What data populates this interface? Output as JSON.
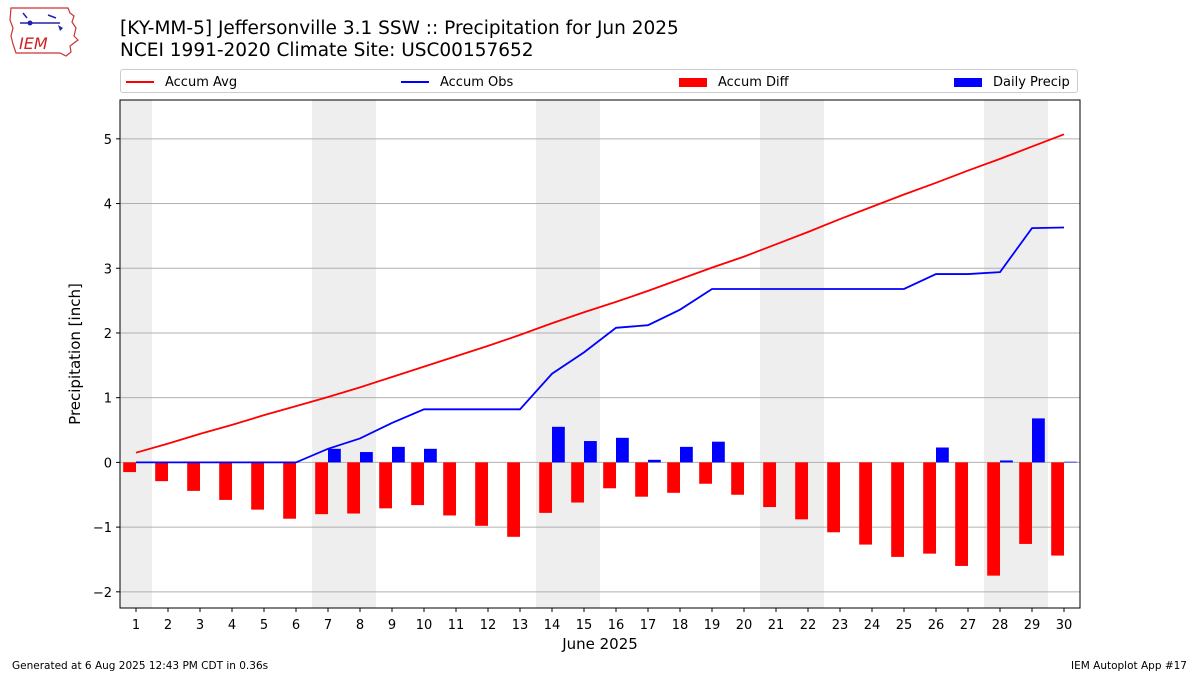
{
  "header": {
    "logo_text": "IEM",
    "title_line1": "[KY-MM-5] Jeffersonville 3.1 SSW :: Precipitation for Jun 2025",
    "title_line2": "NCEI 1991-2020 Climate Site: USC00157652"
  },
  "legend": {
    "accum_avg": "Accum Avg",
    "accum_obs": "Accum Obs",
    "accum_diff": "Accum Diff",
    "daily_precip": "Daily Precip"
  },
  "footer": {
    "left": "Generated at 6 Aug 2025 12:43 PM CDT in 0.36s",
    "right": "IEM Autoplot App #17"
  },
  "colors": {
    "accum_avg": "#ff0000",
    "accum_obs": "#0000ff",
    "accum_diff": "#ff0000",
    "daily_precip": "#0000ff",
    "weekend_shade": "#eeeeee",
    "grid": "#b0b0b0"
  },
  "chart_data": {
    "type": "bar",
    "xlabel": "June 2025",
    "ylabel": "Precipitation [inch]",
    "ylim": [
      -2.25,
      5.6
    ],
    "yticks": [
      -2,
      -1,
      0,
      1,
      2,
      3,
      4,
      5
    ],
    "grid": "horizontal",
    "legend_position": "top",
    "weekend_days": [
      1,
      7,
      8,
      14,
      15,
      21,
      22,
      28,
      29
    ],
    "days": [
      1,
      2,
      3,
      4,
      5,
      6,
      7,
      8,
      9,
      10,
      11,
      12,
      13,
      14,
      15,
      16,
      17,
      18,
      19,
      20,
      21,
      22,
      23,
      24,
      25,
      26,
      27,
      28,
      29,
      30
    ],
    "series": [
      {
        "name": "Accum Avg",
        "kind": "line",
        "values": [
          0.15,
          0.29,
          0.44,
          0.58,
          0.73,
          0.87,
          1.01,
          1.16,
          1.32,
          1.48,
          1.64,
          1.8,
          1.97,
          2.15,
          2.32,
          2.48,
          2.65,
          2.83,
          3.01,
          3.18,
          3.37,
          3.56,
          3.76,
          3.95,
          4.14,
          4.32,
          4.51,
          4.69,
          4.88,
          5.07
        ]
      },
      {
        "name": "Accum Obs",
        "kind": "line",
        "values": [
          0,
          0,
          0,
          0,
          0,
          0,
          0.21,
          0.37,
          0.61,
          0.82,
          0.82,
          0.82,
          0.82,
          1.37,
          1.7,
          2.08,
          2.12,
          2.36,
          2.68,
          2.68,
          2.68,
          2.68,
          2.68,
          2.68,
          2.68,
          2.91,
          2.91,
          2.94,
          3.62,
          3.63
        ]
      },
      {
        "name": "Accum Diff",
        "kind": "bar",
        "values": [
          -0.15,
          -0.29,
          -0.44,
          -0.58,
          -0.73,
          -0.87,
          -0.8,
          -0.79,
          -0.71,
          -0.66,
          -0.82,
          -0.98,
          -1.15,
          -0.78,
          -0.62,
          -0.4,
          -0.53,
          -0.47,
          -0.33,
          -0.5,
          -0.69,
          -0.88,
          -1.08,
          -1.27,
          -1.46,
          -1.41,
          -1.6,
          -1.75,
          -1.26,
          -1.44
        ]
      },
      {
        "name": "Daily Precip",
        "kind": "bar",
        "values": [
          0,
          0,
          0,
          0,
          0,
          0,
          0.21,
          0.16,
          0.24,
          0.21,
          0,
          0,
          0,
          0.55,
          0.33,
          0.38,
          0.04,
          0.24,
          0.32,
          0,
          0,
          0,
          0,
          0,
          0,
          0.23,
          0,
          0.03,
          0.68,
          0.01
        ]
      }
    ]
  }
}
